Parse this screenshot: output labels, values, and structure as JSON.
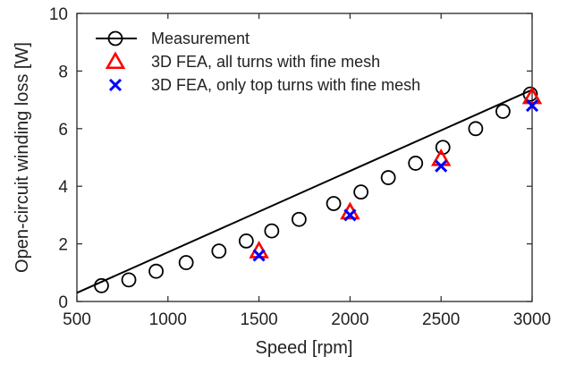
{
  "chart_data": {
    "type": "line",
    "title": "",
    "xlabel": "Speed [rpm]",
    "ylabel": "Open-circuit winding loss [W]",
    "xlim": [
      500,
      3000
    ],
    "ylim": [
      0,
      10
    ],
    "xticks": [
      500,
      1000,
      1500,
      2000,
      2500,
      3000
    ],
    "yticks": [
      0,
      2,
      4,
      6,
      8,
      10
    ],
    "grid": false,
    "legend_position": "top-left",
    "series": [
      {
        "name": "Measurement",
        "marker": "circle",
        "line": true,
        "color": "#000000",
        "x": [
          635,
          785,
          935,
          1100,
          1280,
          1430,
          1570,
          1720,
          1910,
          2060,
          2210,
          2360,
          2510,
          2690,
          2840,
          2990
        ],
        "y": [
          0.55,
          0.75,
          1.05,
          1.35,
          1.75,
          2.1,
          2.45,
          2.85,
          3.4,
          3.8,
          4.3,
          4.8,
          5.35,
          6.0,
          6.6,
          7.2
        ]
      },
      {
        "name": "3D FEA, all turns with fine mesh",
        "marker": "triangle",
        "line": false,
        "color": "#ff0000",
        "x": [
          1500,
          2000,
          2500,
          3000
        ],
        "y": [
          1.75,
          3.1,
          4.95,
          7.1
        ]
      },
      {
        "name": "3D FEA, only top turns with fine mesh",
        "marker": "x",
        "line": false,
        "color": "#0000ff",
        "x": [
          1500,
          2000,
          2500,
          3000
        ],
        "y": [
          1.6,
          3.0,
          4.7,
          6.8
        ]
      }
    ],
    "fit_line": {
      "x": [
        500,
        3000
      ],
      "y": [
        0.3,
        7.35
      ]
    }
  }
}
